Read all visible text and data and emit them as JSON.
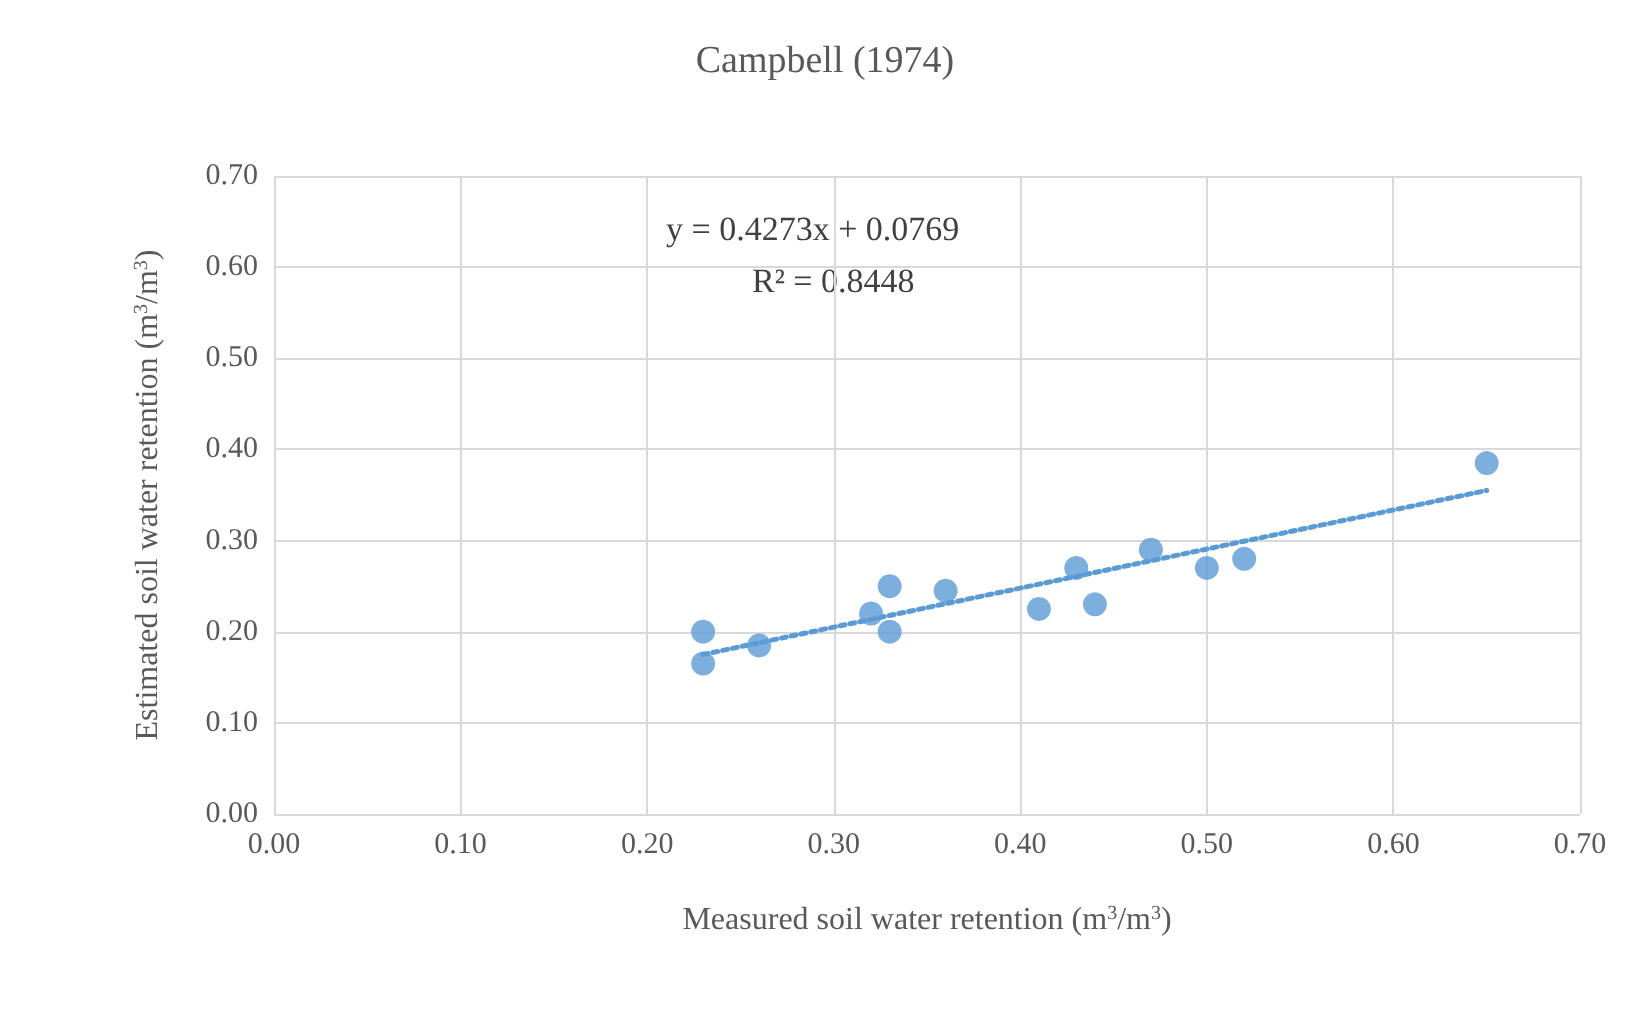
{
  "chart_data": {
    "type": "scatter",
    "title": "Campbell (1974)",
    "xlabel": "Measured soil water retention (m$^{3}$/m$^{3}$)",
    "ylabel": "Estimated soil water retention (m$^{3}$/m$^{3}$)",
    "series": [
      {
        "color": "#5b9bd5",
        "marker": "circle",
        "x": [
          0.23,
          0.23,
          0.26,
          0.32,
          0.33,
          0.33,
          0.36,
          0.41,
          0.43,
          0.44,
          0.47,
          0.5,
          0.52,
          0.65
        ],
        "values": [
          0.2,
          0.165,
          0.185,
          0.22,
          0.25,
          0.2,
          0.245,
          0.225,
          0.27,
          0.23,
          0.29,
          0.27,
          0.28,
          0.385
        ]
      },
      {
        "type": "line",
        "color": "#5b9bd5",
        "line_style": "dotted",
        "marker": "none",
        "x": [
          0.23,
          0.65
        ],
        "values": [
          0.175,
          0.355
        ]
      }
    ],
    "annotations": [
      "y = 0.4273x + 0.0769",
      "R² = 0.8448"
    ],
    "xlim": [
      0,
      0.7
    ],
    "xticks": [
      {
        "value": 0,
        "label": "0.00"
      },
      {
        "value": 0.1,
        "label": "0.10"
      },
      {
        "value": 0.2,
        "label": "0.20"
      },
      {
        "value": 0.3,
        "label": "0.30"
      },
      {
        "value": 0.4,
        "label": "0.40"
      },
      {
        "value": 0.5,
        "label": "0.50"
      },
      {
        "value": 0.6,
        "label": "0.60"
      },
      {
        "value": 0.7,
        "label": "0.70"
      }
    ],
    "ylim": [
      0,
      0.7
    ],
    "yticks": [
      {
        "value": 0,
        "label": "0.00"
      },
      {
        "value": 0.1,
        "label": "0.10"
      },
      {
        "value": 0.2,
        "label": "0.20"
      },
      {
        "value": 0.3,
        "label": "0.30"
      },
      {
        "value": 0.4,
        "label": "0.40"
      },
      {
        "value": 0.5,
        "label": "0.50"
      },
      {
        "value": 0.6,
        "label": "0.60"
      },
      {
        "value": 0.7,
        "label": "0.70"
      }
    ],
    "grid": true
  }
}
